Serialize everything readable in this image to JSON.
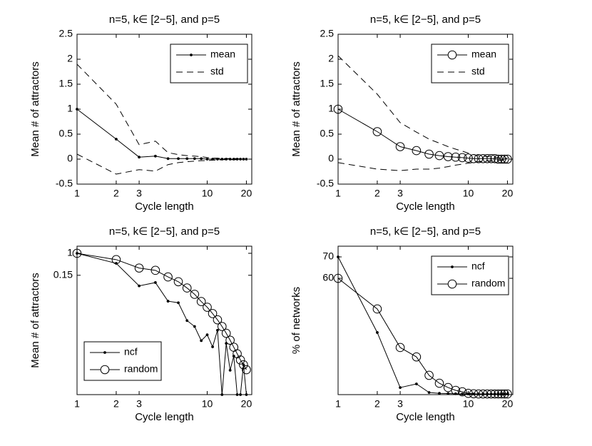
{
  "chart_data": [
    {
      "type": "line",
      "title": "n=5, k∈ [2−5], and p=5",
      "xlabel": "Cycle length",
      "ylabel": "Mean # of attractors",
      "x": [
        1,
        2,
        3,
        4,
        5,
        6,
        7,
        8,
        9,
        10,
        11,
        12,
        13,
        14,
        15,
        16,
        17,
        18,
        19,
        20
      ],
      "xlim": [
        1,
        22
      ],
      "xticks": [
        1,
        2,
        3,
        10,
        20
      ],
      "xscale": "log",
      "ylim": [
        -0.5,
        2.5
      ],
      "yticks": [
        -0.5,
        0,
        0.5,
        1,
        1.5,
        2,
        2.5
      ],
      "yscale": "linear",
      "legend": "northeast",
      "series": [
        {
          "name": "mean",
          "color": "#000000",
          "marker": "dot",
          "style": "solid",
          "values": [
            1.0,
            0.4,
            0.04,
            0.06,
            0.01,
            0.01,
            0.01,
            0.01,
            0.01,
            0,
            0,
            0,
            0,
            0,
            0,
            0,
            0,
            0,
            0,
            0
          ]
        },
        {
          "name": "std",
          "color": "#000000",
          "marker": "none",
          "style": "dashed",
          "spread": true,
          "values": [
            0.9,
            0.7,
            0.25,
            0.3,
            0.12,
            0.08,
            0.06,
            0.05,
            0.04,
            0.03,
            0.02,
            0.02,
            0.01,
            0.01,
            0.01,
            0.01,
            0.01,
            0,
            0,
            0
          ]
        }
      ]
    },
    {
      "type": "line",
      "title": "n=5, k∈ [2−5], and p=5",
      "xlabel": "Cycle length",
      "ylabel": "Mean # of attractors",
      "x": [
        1,
        2,
        3,
        4,
        5,
        6,
        7,
        8,
        9,
        10,
        11,
        12,
        13,
        14,
        15,
        16,
        17,
        18,
        19,
        20
      ],
      "xlim": [
        1,
        22
      ],
      "xticks": [
        1,
        2,
        3,
        10,
        20
      ],
      "xscale": "log",
      "ylim": [
        -0.5,
        2.5
      ],
      "yticks": [
        -0.5,
        0,
        0.5,
        1,
        1.5,
        2,
        2.5
      ],
      "yscale": "linear",
      "legend": "northeast",
      "series": [
        {
          "name": "mean",
          "color": "#000000",
          "marker": "circle",
          "style": "solid",
          "values": [
            1.0,
            0.55,
            0.25,
            0.17,
            0.1,
            0.07,
            0.05,
            0.04,
            0.03,
            0.02,
            0.01,
            0.01,
            0.01,
            0.01,
            0.01,
            0.01,
            0,
            0,
            0,
            0
          ]
        },
        {
          "name": "std",
          "color": "#000000",
          "marker": "none",
          "style": "dashed",
          "spread": true,
          "values": [
            1.07,
            0.75,
            0.48,
            0.37,
            0.3,
            0.25,
            0.2,
            0.16,
            0.13,
            0.1,
            0.08,
            0.06,
            0.05,
            0.04,
            0.04,
            0.03,
            0.03,
            0.02,
            0.02,
            0.02
          ]
        }
      ]
    },
    {
      "type": "line",
      "title": "n=5, k∈ [2−5], and p=5",
      "xlabel": "Cycle length",
      "ylabel": "Mean # of attractors",
      "x": [
        1,
        2,
        3,
        4,
        5,
        6,
        7,
        8,
        9,
        10,
        11,
        12,
        13,
        14,
        15,
        16,
        17,
        18,
        19,
        20
      ],
      "xlim": [
        1,
        22
      ],
      "xticks": [
        1,
        2,
        3,
        10,
        20
      ],
      "xscale": "log",
      "ylim": [
        5e-06,
        1.85
      ],
      "yticks": [
        0.15,
        1
      ],
      "yscale": "log",
      "legend": "southwest",
      "series": [
        {
          "name": "ncf",
          "color": "#000000",
          "marker": "dot",
          "style": "solid",
          "values": [
            1,
            0.42,
            0.06,
            0.08,
            0.016,
            0.014,
            0.003,
            0.0018,
            0.00053,
            0.00088,
            0.00031,
            0.0013,
            0,
            0.00042,
            4.1e-05,
            0.00014,
            0,
            0,
            6.6e-05,
            0
          ]
        },
        {
          "name": "random",
          "color": "#000000",
          "marker": "circle",
          "style": "solid",
          "values": [
            1,
            0.58,
            0.28,
            0.23,
            0.13,
            0.086,
            0.05,
            0.029,
            0.0155,
            0.0095,
            0.0055,
            0.0032,
            0.0018,
            0.001,
            0.00055,
            0.0003,
            0.00017,
            0.0001,
            6.6e-05,
            4.3e-05
          ]
        }
      ]
    },
    {
      "type": "line",
      "title": "n=5, k∈ [2−5], and p=5",
      "xlabel": "Cycle length",
      "ylabel": "% of networks",
      "x": [
        1,
        2,
        3,
        4,
        5,
        6,
        7,
        8,
        9,
        10,
        11,
        12,
        13,
        14,
        15,
        16,
        17,
        18,
        19,
        20
      ],
      "xlim": [
        1,
        22
      ],
      "xticks": [
        1,
        2,
        3,
        10,
        20
      ],
      "xscale": "log",
      "ylim": [
        5.7,
        75
      ],
      "yticks": [
        60,
        70
      ],
      "yscale": "linear",
      "legend": "northeast",
      "series": [
        {
          "name": "ncf",
          "color": "#000000",
          "marker": "dot",
          "style": "solid",
          "values": [
            70,
            34.7,
            9,
            10.7,
            6.7,
            6.3,
            6.2,
            6.1,
            6,
            6,
            6,
            6,
            6,
            6,
            6,
            6,
            6,
            6,
            6,
            6
          ]
        },
        {
          "name": "random",
          "color": "#000000",
          "marker": "circle",
          "style": "solid",
          "values": [
            60,
            45.7,
            27.7,
            23.3,
            14.7,
            11,
            9,
            7.7,
            7,
            6.3,
            6.1,
            6,
            6,
            6,
            6,
            6,
            6,
            6,
            6,
            6
          ]
        }
      ]
    }
  ]
}
